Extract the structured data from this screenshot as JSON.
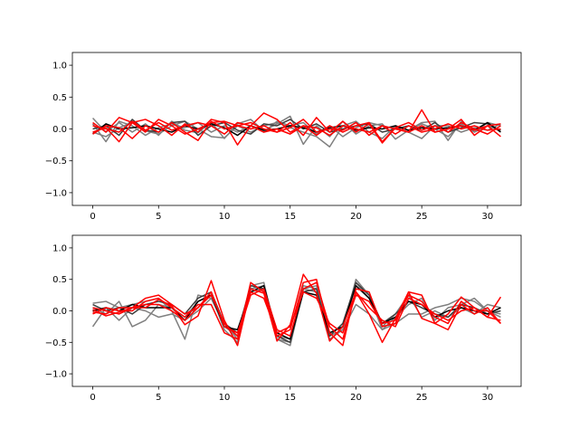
{
  "chart_data": [
    {
      "type": "line",
      "title": "",
      "xlabel": "",
      "ylabel": "",
      "xlim": [
        -1.55,
        32.55
      ],
      "ylim": [
        -1.2,
        1.2
      ],
      "xticks": [
        0,
        5,
        10,
        15,
        20,
        25,
        30
      ],
      "yticks": [
        -1.0,
        -0.5,
        0.0,
        0.5,
        1.0
      ],
      "grid": false,
      "legend": "none",
      "x": [
        0,
        1,
        2,
        3,
        4,
        5,
        6,
        7,
        8,
        9,
        10,
        11,
        12,
        13,
        14,
        15,
        16,
        17,
        18,
        19,
        20,
        21,
        22,
        23,
        24,
        25,
        26,
        27,
        28,
        29,
        30,
        31
      ],
      "series": [
        {
          "color": "#7f7f7f",
          "values": [
            0.17,
            -0.05,
            0.1,
            -0.05,
            0.08,
            -0.1,
            0.12,
            -0.02,
            -0.06,
            0.11,
            -0.15,
            0.08,
            0.15,
            -0.03,
            0.08,
            0.2,
            -0.24,
            0.05,
            -0.12,
            0.12,
            -0.08,
            0.05,
            0.08,
            -0.16,
            -0.02,
            0.1,
            0.12,
            -0.18,
            0.12,
            -0.05,
            0.1,
            0.05
          ]
        },
        {
          "color": "#7f7f7f",
          "values": [
            -0.05,
            -0.12,
            0.02,
            0.1,
            -0.03,
            -0.08,
            0.05,
            0.12,
            0.0,
            -0.12,
            -0.14,
            0.05,
            -0.05,
            0.05,
            0.1,
            0.02,
            -0.05,
            -0.12,
            -0.28,
            0.05,
            0.12,
            -0.05,
            -0.15,
            0.05,
            -0.02,
            0.08,
            0.0,
            -0.12,
            0.08,
            -0.05,
            0.05,
            -0.02
          ]
        },
        {
          "color": "#7f7f7f",
          "values": [
            0.08,
            -0.2,
            0.12,
            0.05,
            -0.1,
            0.02,
            0.08,
            0.02,
            0.1,
            -0.05,
            0.05,
            -0.05,
            0.05,
            -0.05,
            0.12,
            0.05,
            0.1,
            -0.08,
            0.05,
            -0.12,
            0.02,
            0.1,
            0.05,
            0.0,
            -0.05,
            -0.15,
            0.05,
            0.05,
            -0.05,
            0.02,
            -0.02,
            0.08
          ]
        },
        {
          "color": "#3f3f3f",
          "values": [
            0.0,
            0.05,
            -0.1,
            0.15,
            -0.02,
            -0.05,
            0.1,
            0.12,
            -0.1,
            0.05,
            0.1,
            -0.02,
            -0.08,
            0.08,
            0.05,
            0.15,
            0.0,
            0.08,
            -0.05,
            0.0,
            0.05,
            0.08,
            -0.05,
            0.0,
            0.05,
            -0.02,
            0.1,
            -0.05,
            0.02,
            0.1,
            0.08,
            -0.02
          ]
        },
        {
          "color": "#000000",
          "values": [
            -0.08,
            0.08,
            0.0,
            0.02,
            0.05,
            0.0,
            -0.05,
            0.05,
            0.0,
            0.08,
            0.02,
            -0.1,
            0.05,
            -0.02,
            0.0,
            0.05,
            0.02,
            -0.05,
            0.02,
            0.05,
            -0.02,
            0.02,
            0.0,
            0.05,
            -0.02,
            0.02,
            0.0,
            0.02,
            0.05,
            -0.02,
            0.1,
            -0.05
          ]
        },
        {
          "color": "#ff0000",
          "values": [
            -0.05,
            0.02,
            -0.2,
            0.1,
            0.15,
            0.05,
            -0.1,
            0.08,
            -0.05,
            0.15,
            0.1,
            -0.25,
            0.05,
            0.25,
            0.15,
            -0.05,
            0.05,
            -0.1,
            0.05,
            -0.05,
            0.05,
            0.1,
            -0.2,
            0.02,
            -0.05,
            0.3,
            -0.05,
            0.0,
            0.15,
            -0.1,
            0.05,
            -0.12
          ]
        },
        {
          "color": "#ff0000",
          "values": [
            0.1,
            -0.05,
            0.18,
            0.1,
            -0.05,
            0.15,
            0.05,
            -0.08,
            0.0,
            0.1,
            0.12,
            0.05,
            0.1,
            0.0,
            -0.05,
            0.1,
            -0.1,
            0.18,
            -0.05,
            0.12,
            -0.05,
            0.08,
            -0.22,
            0.02,
            0.1,
            -0.02,
            0.05,
            -0.05,
            0.1,
            0.0,
            -0.08,
            0.05
          ]
        },
        {
          "color": "#ff0000",
          "values": [
            -0.08,
            0.05,
            0.02,
            -0.15,
            0.05,
            -0.05,
            0.1,
            -0.05,
            -0.18,
            0.12,
            0.0,
            0.05,
            0.0,
            0.05,
            -0.05,
            0.02,
            0.15,
            -0.05,
            0.0,
            -0.02,
            0.1,
            -0.1,
            0.05,
            0.0,
            -0.05,
            0.05,
            -0.05,
            0.0,
            0.05,
            -0.02,
            0.05,
            0.08
          ]
        },
        {
          "color": "#ff0000",
          "values": [
            0.05,
            0.0,
            -0.05,
            0.12,
            -0.02,
            0.1,
            -0.02,
            0.05,
            0.1,
            0.05,
            -0.08,
            0.1,
            0.05,
            -0.05,
            0.0,
            -0.08,
            0.05,
            0.02,
            -0.1,
            0.05,
            0.0,
            -0.05,
            0.05,
            -0.08,
            0.05,
            -0.05,
            0.0,
            0.08,
            0.0,
            0.05,
            -0.02,
            0.0
          ]
        }
      ]
    },
    {
      "type": "line",
      "title": "",
      "xlabel": "",
      "ylabel": "",
      "xlim": [
        -1.55,
        32.55
      ],
      "ylim": [
        -1.2,
        1.2
      ],
      "xticks": [
        0,
        5,
        10,
        15,
        20,
        25,
        30
      ],
      "yticks": [
        -1.0,
        -0.5,
        0.0,
        0.5,
        1.0
      ],
      "grid": false,
      "legend": "none",
      "x": [
        0,
        1,
        2,
        3,
        4,
        5,
        6,
        7,
        8,
        9,
        10,
        11,
        12,
        13,
        14,
        15,
        16,
        17,
        18,
        19,
        20,
        21,
        22,
        23,
        24,
        25,
        26,
        27,
        28,
        29,
        30,
        31
      ],
      "series": [
        {
          "color": "#7f7f7f",
          "values": [
            0.12,
            0.15,
            0.05,
            0.1,
            0.15,
            0.2,
            0.0,
            -0.45,
            0.25,
            0.2,
            -0.25,
            -0.4,
            0.4,
            0.45,
            -0.45,
            -0.5,
            0.35,
            0.3,
            -0.45,
            -0.3,
            0.1,
            -0.05,
            -0.3,
            -0.1,
            0.1,
            0.2,
            -0.15,
            0.05,
            0.1,
            0.2,
            0.0,
            -0.05
          ]
        },
        {
          "color": "#7f7f7f",
          "values": [
            -0.25,
            0.05,
            -0.15,
            0.05,
            0.0,
            -0.1,
            -0.05,
            -0.15,
            0.0,
            0.2,
            -0.2,
            -0.45,
            0.3,
            0.35,
            -0.4,
            -0.45,
            0.4,
            0.35,
            -0.35,
            -0.25,
            0.45,
            0.2,
            -0.25,
            -0.05,
            0.25,
            -0.1,
            0.0,
            -0.1,
            0.05,
            -0.05,
            0.1,
            0.05
          ]
        },
        {
          "color": "#7f7f7f",
          "values": [
            0.05,
            -0.05,
            0.15,
            -0.25,
            -0.15,
            0.1,
            0.05,
            -0.1,
            0.15,
            0.25,
            -0.3,
            -0.5,
            0.35,
            0.4,
            -0.45,
            -0.55,
            0.35,
            0.4,
            -0.4,
            -0.3,
            0.5,
            0.25,
            -0.3,
            -0.2,
            -0.05,
            -0.05,
            0.05,
            0.1,
            0.2,
            0.15,
            0.0,
            -0.1
          ]
        },
        {
          "color": "#3f3f3f",
          "values": [
            0.1,
            0.0,
            0.05,
            -0.05,
            0.1,
            0.15,
            0.1,
            -0.05,
            0.2,
            0.3,
            -0.2,
            -0.35,
            0.4,
            0.35,
            -0.4,
            -0.5,
            0.3,
            0.35,
            -0.4,
            -0.2,
            0.45,
            0.25,
            -0.2,
            -0.05,
            0.15,
            0.05,
            -0.05,
            -0.1,
            0.1,
            0.05,
            -0.05,
            0.0
          ]
        },
        {
          "color": "#000000",
          "values": [
            0.0,
            0.05,
            0.0,
            0.1,
            0.05,
            0.05,
            0.05,
            -0.15,
            0.15,
            0.25,
            -0.25,
            -0.3,
            0.3,
            0.4,
            -0.35,
            -0.45,
            0.3,
            0.25,
            -0.35,
            -0.25,
            0.4,
            0.2,
            -0.2,
            -0.1,
            0.15,
            0.1,
            -0.1,
            0.0,
            0.05,
            0.0,
            -0.05,
            0.05
          ]
        },
        {
          "color": "#ff0000",
          "values": [
            0.02,
            -0.08,
            -0.02,
            0.05,
            0.05,
            0.18,
            0.08,
            -0.22,
            -0.08,
            0.48,
            -0.15,
            -0.55,
            0.35,
            0.28,
            -0.48,
            -0.22,
            0.58,
            0.28,
            -0.48,
            -0.25,
            0.3,
            -0.05,
            -0.5,
            -0.12,
            0.3,
            -0.12,
            -0.2,
            -0.05,
            0.22,
            0.05,
            -0.1,
            0.22
          ]
        },
        {
          "color": "#ff0000",
          "values": [
            -0.05,
            0.05,
            0.0,
            0.0,
            0.15,
            0.2,
            0.05,
            -0.1,
            0.1,
            0.1,
            -0.35,
            -0.45,
            0.45,
            0.3,
            -0.4,
            -0.3,
            0.45,
            0.5,
            -0.35,
            -0.55,
            0.35,
            0.3,
            -0.25,
            -0.2,
            0.3,
            0.25,
            -0.2,
            -0.3,
            0.1,
            -0.05,
            0.05,
            -0.2
          ]
        },
        {
          "color": "#ff0000",
          "values": [
            0.05,
            0.0,
            -0.05,
            0.05,
            0.1,
            0.1,
            0.0,
            -0.15,
            0.05,
            0.25,
            -0.2,
            -0.4,
            0.25,
            0.35,
            -0.3,
            -0.4,
            0.35,
            0.45,
            -0.25,
            -0.45,
            0.3,
            0.05,
            -0.15,
            -0.25,
            0.2,
            0.1,
            -0.05,
            -0.15,
            0.0,
            0.05,
            -0.1,
            -0.15
          ]
        },
        {
          "color": "#ff0000",
          "values": [
            -0.02,
            -0.05,
            0.05,
            0.05,
            0.2,
            0.25,
            0.1,
            -0.05,
            0.05,
            0.3,
            -0.25,
            -0.35,
            0.3,
            0.2,
            -0.35,
            -0.25,
            0.3,
            0.2,
            -0.2,
            -0.35,
            0.25,
            0.15,
            -0.2,
            -0.15,
            0.25,
            0.15,
            -0.1,
            -0.2,
            0.15,
            0.0,
            0.0,
            -0.2
          ]
        }
      ]
    }
  ]
}
